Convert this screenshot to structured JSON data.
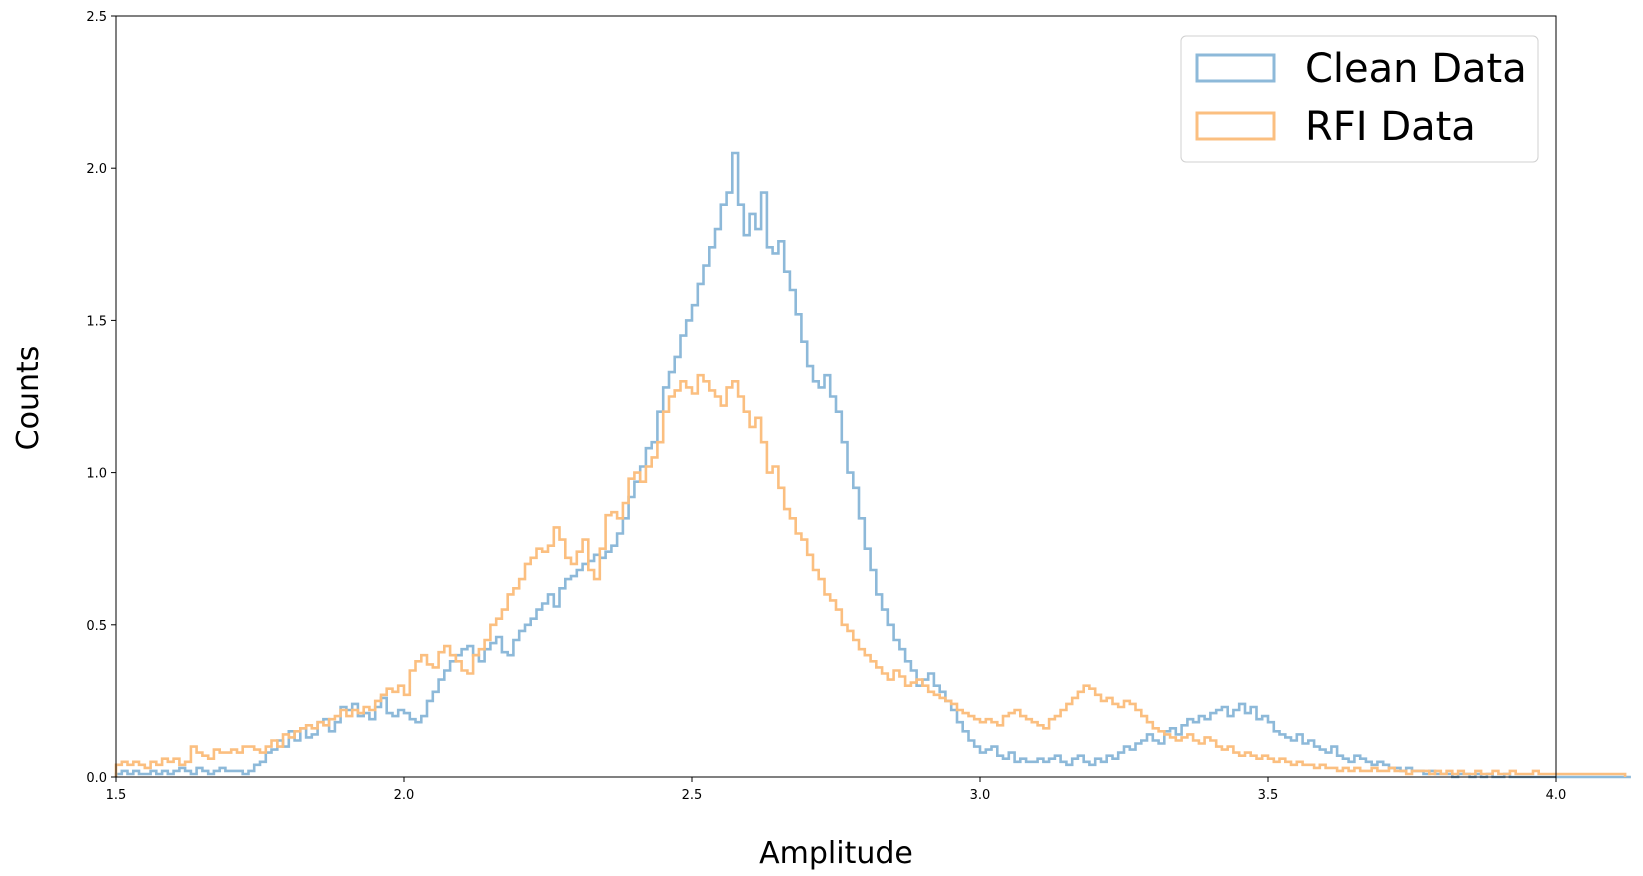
{
  "chart_data": {
    "type": "histogram",
    "xlabel": "Amplitude",
    "ylabel": "Counts",
    "xlim": [
      1.5,
      4.0
    ],
    "ylim": [
      0.0,
      2.5
    ],
    "xticks": [
      "1.5",
      "2.0",
      "2.5",
      "3.0",
      "3.5",
      "4.0"
    ],
    "yticks": [
      "0.0",
      "0.5",
      "1.0",
      "1.5",
      "2.0",
      "2.5"
    ],
    "grid": false,
    "legend_position": "top-right",
    "bin_width": 0.01,
    "bin_start": 1.5,
    "series": [
      {
        "name": "Clean Data",
        "color": "#8db9d9",
        "values": [
          0.01,
          0.02,
          0.01,
          0.02,
          0.01,
          0.01,
          0.02,
          0.01,
          0.02,
          0.01,
          0.02,
          0.03,
          0.02,
          0.01,
          0.03,
          0.02,
          0.01,
          0.02,
          0.03,
          0.02,
          0.02,
          0.02,
          0.01,
          0.02,
          0.04,
          0.05,
          0.08,
          0.09,
          0.12,
          0.1,
          0.15,
          0.12,
          0.16,
          0.13,
          0.14,
          0.18,
          0.19,
          0.15,
          0.18,
          0.23,
          0.22,
          0.24,
          0.2,
          0.21,
          0.19,
          0.23,
          0.26,
          0.21,
          0.2,
          0.22,
          0.21,
          0.19,
          0.18,
          0.2,
          0.25,
          0.28,
          0.32,
          0.35,
          0.38,
          0.4,
          0.42,
          0.43,
          0.4,
          0.38,
          0.42,
          0.44,
          0.46,
          0.41,
          0.4,
          0.45,
          0.48,
          0.5,
          0.52,
          0.55,
          0.57,
          0.6,
          0.56,
          0.62,
          0.65,
          0.66,
          0.68,
          0.7,
          0.71,
          0.73,
          0.72,
          0.74,
          0.76,
          0.8,
          0.85,
          0.92,
          0.97,
          1.02,
          1.08,
          1.1,
          1.2,
          1.28,
          1.33,
          1.38,
          1.45,
          1.5,
          1.55,
          1.62,
          1.68,
          1.74,
          1.8,
          1.88,
          1.92,
          2.05,
          1.88,
          1.78,
          1.85,
          1.8,
          1.92,
          1.74,
          1.72,
          1.76,
          1.66,
          1.6,
          1.52,
          1.43,
          1.35,
          1.3,
          1.28,
          1.32,
          1.25,
          1.2,
          1.1,
          1.0,
          0.95,
          0.85,
          0.75,
          0.68,
          0.6,
          0.55,
          0.5,
          0.45,
          0.42,
          0.38,
          0.35,
          0.3,
          0.32,
          0.34,
          0.3,
          0.28,
          0.25,
          0.22,
          0.18,
          0.15,
          0.12,
          0.1,
          0.08,
          0.09,
          0.1,
          0.07,
          0.06,
          0.08,
          0.05,
          0.06,
          0.05,
          0.05,
          0.06,
          0.05,
          0.06,
          0.07,
          0.05,
          0.04,
          0.06,
          0.07,
          0.05,
          0.04,
          0.06,
          0.05,
          0.07,
          0.06,
          0.08,
          0.1,
          0.09,
          0.11,
          0.12,
          0.14,
          0.12,
          0.11,
          0.15,
          0.16,
          0.14,
          0.17,
          0.19,
          0.18,
          0.2,
          0.19,
          0.21,
          0.22,
          0.23,
          0.2,
          0.22,
          0.24,
          0.21,
          0.23,
          0.19,
          0.2,
          0.18,
          0.15,
          0.14,
          0.13,
          0.12,
          0.14,
          0.11,
          0.12,
          0.1,
          0.09,
          0.08,
          0.1,
          0.07,
          0.06,
          0.05,
          0.07,
          0.06,
          0.05,
          0.04,
          0.05,
          0.04,
          0.03,
          0.03,
          0.02,
          0.03,
          0.02,
          0.02,
          0.01,
          0.02,
          0.01,
          0.01,
          0.01,
          0.0,
          0.01,
          0.01,
          0.0,
          0.01,
          0.0,
          0.01,
          0.0,
          0.0,
          0.01,
          0.0,
          0.0,
          0.0,
          0.0,
          0.0,
          0.0,
          0.0,
          0.0,
          0.0,
          0.0,
          0.0,
          0.0,
          0.0,
          0.0,
          0.0,
          0.0,
          0.0,
          0.0,
          0.0,
          0.0,
          0.0
        ]
      },
      {
        "name": "RFI Data",
        "color": "#fbbf80",
        "values": [
          0.04,
          0.05,
          0.04,
          0.05,
          0.04,
          0.03,
          0.05,
          0.04,
          0.06,
          0.05,
          0.06,
          0.04,
          0.05,
          0.1,
          0.08,
          0.07,
          0.06,
          0.09,
          0.08,
          0.08,
          0.09,
          0.08,
          0.1,
          0.1,
          0.09,
          0.08,
          0.1,
          0.12,
          0.1,
          0.14,
          0.13,
          0.15,
          0.16,
          0.17,
          0.16,
          0.18,
          0.17,
          0.19,
          0.2,
          0.22,
          0.2,
          0.22,
          0.21,
          0.23,
          0.22,
          0.25,
          0.27,
          0.29,
          0.28,
          0.3,
          0.27,
          0.35,
          0.38,
          0.4,
          0.37,
          0.36,
          0.41,
          0.43,
          0.4,
          0.38,
          0.35,
          0.34,
          0.4,
          0.42,
          0.45,
          0.5,
          0.52,
          0.55,
          0.6,
          0.62,
          0.65,
          0.7,
          0.72,
          0.75,
          0.74,
          0.76,
          0.82,
          0.78,
          0.72,
          0.7,
          0.74,
          0.78,
          0.68,
          0.65,
          0.75,
          0.86,
          0.87,
          0.85,
          0.9,
          0.98,
          1.0,
          0.97,
          1.02,
          1.05,
          1.1,
          1.2,
          1.25,
          1.27,
          1.3,
          1.28,
          1.26,
          1.32,
          1.3,
          1.27,
          1.25,
          1.22,
          1.28,
          1.3,
          1.25,
          1.2,
          1.15,
          1.18,
          1.1,
          1.0,
          1.02,
          0.95,
          0.88,
          0.85,
          0.8,
          0.78,
          0.73,
          0.68,
          0.65,
          0.6,
          0.58,
          0.55,
          0.5,
          0.48,
          0.45,
          0.42,
          0.4,
          0.38,
          0.36,
          0.34,
          0.32,
          0.35,
          0.33,
          0.3,
          0.31,
          0.32,
          0.3,
          0.28,
          0.27,
          0.26,
          0.25,
          0.24,
          0.22,
          0.21,
          0.2,
          0.19,
          0.18,
          0.19,
          0.18,
          0.17,
          0.2,
          0.21,
          0.22,
          0.2,
          0.19,
          0.18,
          0.17,
          0.16,
          0.19,
          0.2,
          0.22,
          0.24,
          0.26,
          0.28,
          0.3,
          0.29,
          0.27,
          0.25,
          0.26,
          0.24,
          0.23,
          0.25,
          0.24,
          0.22,
          0.2,
          0.18,
          0.16,
          0.15,
          0.14,
          0.13,
          0.12,
          0.13,
          0.14,
          0.12,
          0.11,
          0.13,
          0.12,
          0.1,
          0.09,
          0.1,
          0.08,
          0.07,
          0.08,
          0.07,
          0.06,
          0.07,
          0.06,
          0.05,
          0.06,
          0.05,
          0.04,
          0.05,
          0.04,
          0.04,
          0.03,
          0.04,
          0.03,
          0.03,
          0.02,
          0.03,
          0.02,
          0.03,
          0.02,
          0.02,
          0.03,
          0.02,
          0.02,
          0.03,
          0.02,
          0.02,
          0.01,
          0.02,
          0.02,
          0.02,
          0.01,
          0.02,
          0.01,
          0.02,
          0.01,
          0.02,
          0.01,
          0.01,
          0.02,
          0.01,
          0.01,
          0.02,
          0.01,
          0.01,
          0.02,
          0.01,
          0.01,
          0.01,
          0.02,
          0.01,
          0.01,
          0.01,
          0.01,
          0.01,
          0.01,
          0.01,
          0.01,
          0.01,
          0.01,
          0.01,
          0.01,
          0.01,
          0.01,
          0.01
        ]
      }
    ]
  }
}
